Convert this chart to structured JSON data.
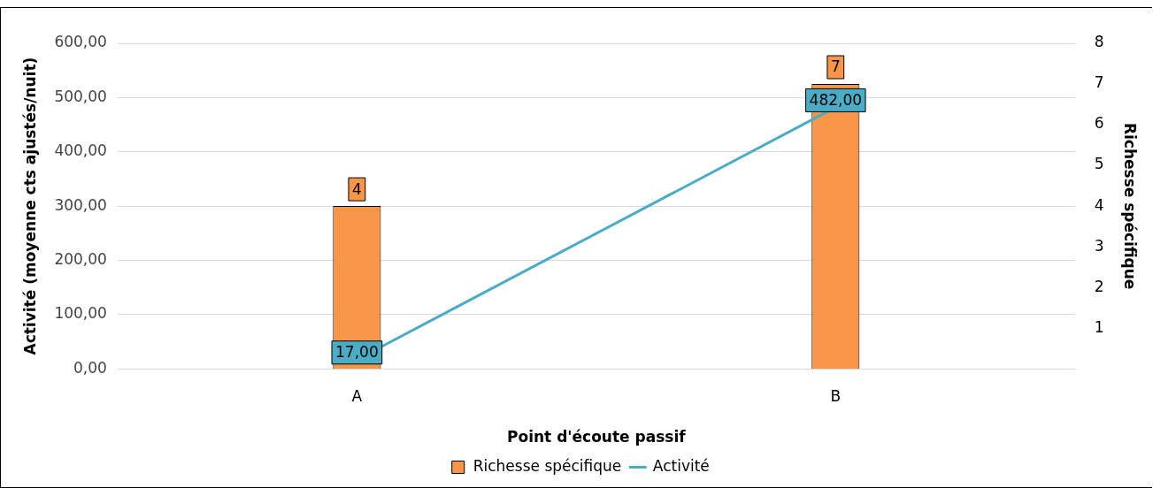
{
  "chart_data": {
    "type": "bar",
    "categories": [
      "A",
      "B"
    ],
    "xlabel": "Point d'écoute passif",
    "ylabel": "Activité (moyenne cts ajustés/nuit)",
    "y2label": "Richesse spécifique",
    "ylim": [
      0,
      600
    ],
    "yticks": [
      {
        "value": 0,
        "label": "0,00"
      },
      {
        "value": 100,
        "label": "100,00"
      },
      {
        "value": 200,
        "label": "200,00"
      },
      {
        "value": 300,
        "label": "300,00"
      },
      {
        "value": 400,
        "label": "400,00"
      },
      {
        "value": 500,
        "label": "500,00"
      },
      {
        "value": 600,
        "label": "600,00"
      }
    ],
    "y2lim": [
      0,
      8
    ],
    "y2ticks": [
      1,
      2,
      3,
      4,
      5,
      6,
      7,
      8
    ],
    "grid": "y",
    "legend": "bottom",
    "series": [
      {
        "name": "Richesse spécifique",
        "axis": "y2",
        "color": "#f79646",
        "values": [
          4,
          7
        ],
        "value_labels": [
          "4",
          "7"
        ]
      },
      {
        "name": "Activité",
        "type": "line",
        "color": "#4bacc6",
        "values": [
          17,
          482
        ],
        "value_labels": [
          "17,00",
          "482,00"
        ]
      }
    ]
  }
}
